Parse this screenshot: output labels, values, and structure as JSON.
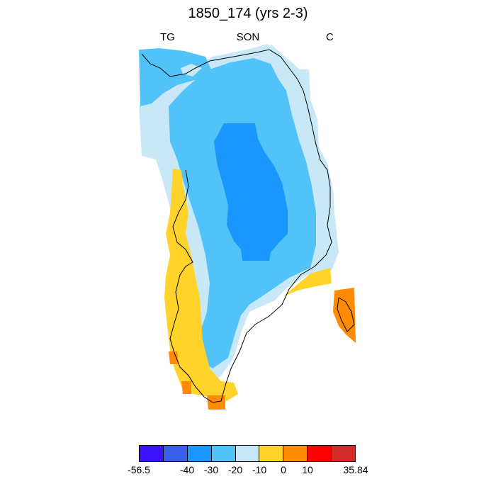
{
  "title": "1850_174 (yrs 2-3)",
  "left_label": "TG",
  "center_label": "SON",
  "right_label": "C",
  "colorbar": {
    "colors": [
      "#3d12ff",
      "#3a5fe8",
      "#1a96ff",
      "#52c3f8",
      "#c8e8f8",
      "#ffd32a",
      "#ff8c00",
      "#ff0000",
      "#d52a2a"
    ],
    "labels": [
      "-56.5",
      "-40",
      "-30",
      "-20",
      "-10",
      "0",
      "10",
      "35.84"
    ]
  },
  "chart_data": {
    "type": "heatmap",
    "region": "Greenland",
    "season": "SON",
    "variable": "TG",
    "units": "C",
    "value_range": [
      -56.5,
      35.84
    ],
    "contour_levels": [
      -40,
      -30,
      -20,
      -10,
      0,
      10
    ],
    "observed_bands": [
      {
        "range": [
          -40,
          -30
        ],
        "location": "central ice sheet core"
      },
      {
        "range": [
          -30,
          -20
        ],
        "location": "interior ice sheet"
      },
      {
        "range": [
          -20,
          -10
        ],
        "location": "ice sheet margins and north coast"
      },
      {
        "range": [
          -10,
          0
        ],
        "location": "coastal fringe"
      },
      {
        "range": [
          0,
          10
        ],
        "location": "southwest and southeast coast"
      },
      {
        "range": [
          10,
          35.84
        ],
        "location": "southern tip and east coast islands"
      }
    ]
  }
}
